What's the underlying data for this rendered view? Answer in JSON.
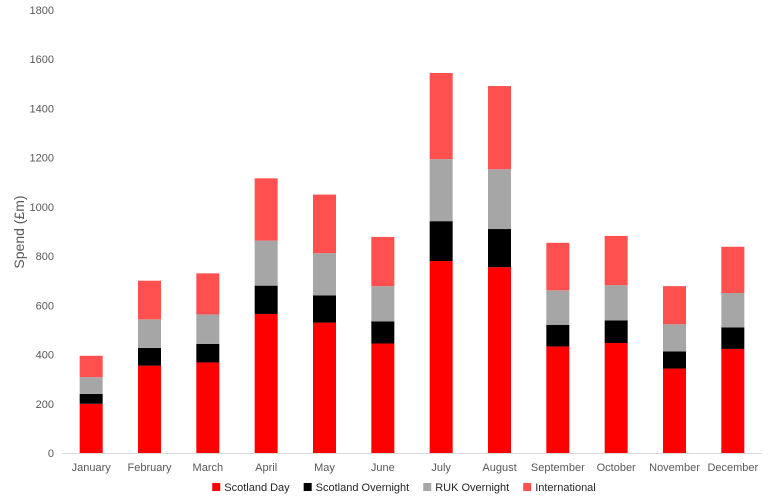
{
  "chart_data": {
    "type": "bar",
    "stacked": true,
    "categories": [
      "January",
      "February",
      "March",
      "April",
      "May",
      "June",
      "July",
      "August",
      "September",
      "October",
      "November",
      "December"
    ],
    "series": [
      {
        "name": "Scotland Day",
        "color": "#ff0000",
        "values": [
          200,
          355,
          368,
          565,
          530,
          445,
          780,
          755,
          433,
          447,
          343,
          423
        ]
      },
      {
        "name": "Scotland Overnight",
        "color": "#000000",
        "values": [
          40,
          72,
          75,
          115,
          110,
          90,
          162,
          155,
          88,
          92,
          70,
          87
        ]
      },
      {
        "name": "RUK Overnight",
        "color": "#a6a6a6",
        "values": [
          68,
          116,
          120,
          183,
          172,
          143,
          252,
          243,
          140,
          143,
          110,
          140
        ]
      },
      {
        "name": "International",
        "color": "#ff5050",
        "values": [
          87,
          157,
          167,
          253,
          238,
          200,
          350,
          338,
          193,
          200,
          155,
          188
        ]
      }
    ],
    "title": "",
    "xlabel": "",
    "ylabel": "Spend (£m)",
    "ylim": [
      0,
      1800
    ],
    "yticks": [
      0,
      200,
      400,
      600,
      800,
      1000,
      1200,
      1400,
      1600,
      1800
    ],
    "grid": false,
    "legend_position": "bottom"
  }
}
